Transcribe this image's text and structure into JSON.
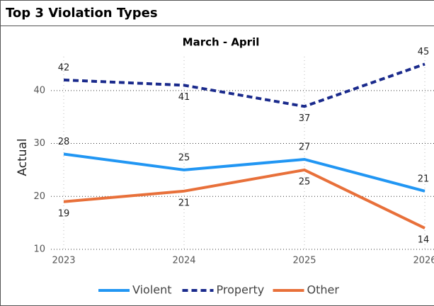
{
  "chart_data": {
    "type": "line",
    "title": "Top 3 Violation Types",
    "subtitle": "March - April",
    "y_label": "Actual",
    "x": [
      2023,
      2024,
      2025,
      2026
    ],
    "xlim": [
      2023,
      2026
    ],
    "xticks": [
      2023,
      2024,
      2025,
      2026
    ],
    "ylim": [
      10,
      46
    ],
    "yticks": [
      10,
      20,
      30,
      40
    ],
    "grid": true,
    "legend": "bottom",
    "series": [
      {
        "name": "Violent",
        "color": "#2196f3",
        "dashed": false,
        "values": [
          28,
          25,
          27,
          21
        ]
      },
      {
        "name": "Property",
        "color": "#1a2a8c",
        "dashed": true,
        "values": [
          42,
          41,
          37,
          45
        ]
      },
      {
        "name": "Other",
        "color": "#e8703a",
        "dashed": false,
        "values": [
          19,
          21,
          25,
          14
        ]
      }
    ]
  }
}
